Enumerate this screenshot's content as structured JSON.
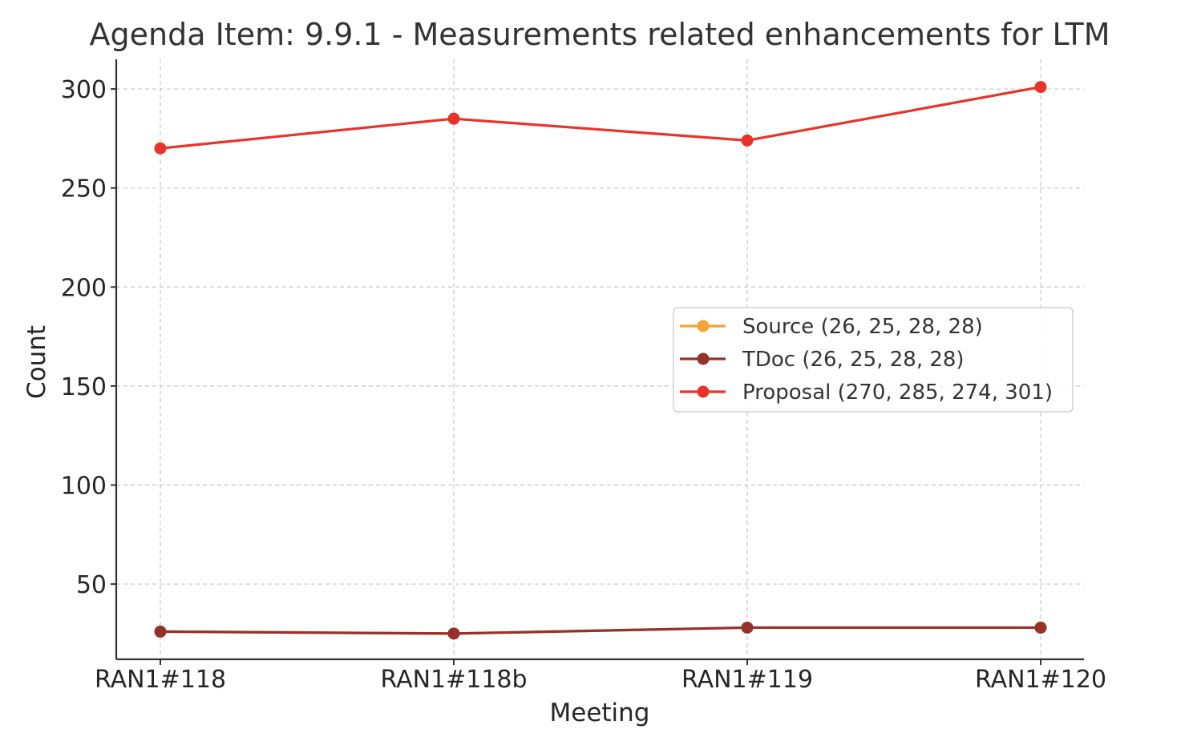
{
  "chart_data": {
    "type": "line",
    "title": "Agenda Item: 9.9.1 - Measurements related enhancements for LTM",
    "xlabel": "Meeting",
    "ylabel": "Count",
    "categories": [
      "RAN1#118",
      "RAN1#118b",
      "RAN1#119",
      "RAN1#120"
    ],
    "ylim": [
      12,
      315
    ],
    "yticks": [
      50,
      100,
      150,
      200,
      250,
      300
    ],
    "grid": true,
    "legend_position": "center-right",
    "series": [
      {
        "name": "Source (26, 25, 28, 28)",
        "values": [
          26,
          25,
          28,
          28
        ],
        "color": "#f4a335"
      },
      {
        "name": "TDoc (26, 25, 28, 28)",
        "values": [
          26,
          25,
          28,
          28
        ],
        "color": "#96312b"
      },
      {
        "name": "Proposal (270, 285, 274, 301)",
        "values": [
          270,
          285,
          274,
          301
        ],
        "color": "#e8332a"
      }
    ]
  }
}
